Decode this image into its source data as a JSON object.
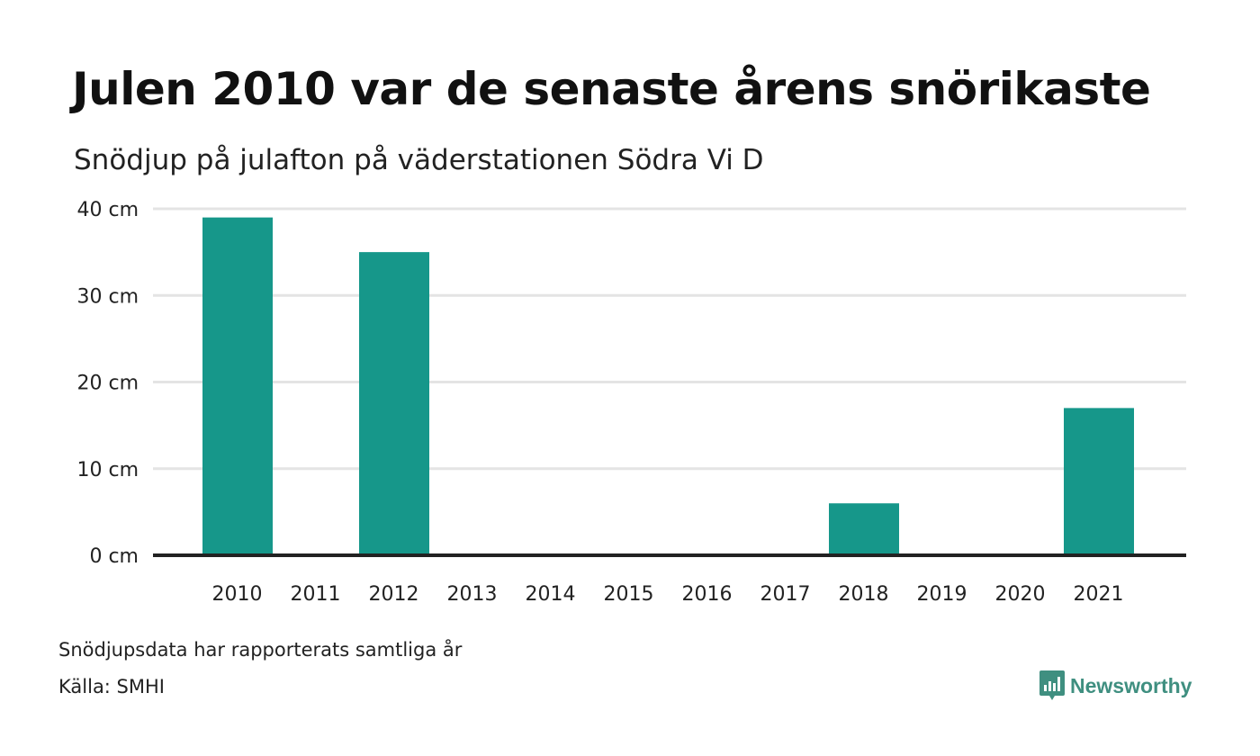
{
  "title": "Julen 2010 var de senaste årens snörikaste",
  "subtitle": "Snödjup på julafton på väderstationen Södra Vi D",
  "chart_data": {
    "type": "bar",
    "categories": [
      "2010",
      "2011",
      "2012",
      "2013",
      "2014",
      "2015",
      "2016",
      "2017",
      "2018",
      "2019",
      "2020",
      "2021"
    ],
    "values": [
      39,
      0,
      35,
      0,
      0,
      0,
      0,
      0,
      6,
      0,
      0,
      17
    ],
    "ylim": [
      0,
      40
    ],
    "yticks": [
      0,
      10,
      20,
      30,
      40
    ],
    "ytick_labels": [
      "0 cm",
      "10 cm",
      "20 cm",
      "30 cm",
      "40 cm"
    ],
    "grid": true,
    "bar_color": "#16978a",
    "grid_color": "#e4e4e4",
    "axis_color": "#222222"
  },
  "footer": {
    "note": "Snödjupsdata har rapporterats samtliga år",
    "source": "Källa: SMHI"
  },
  "brand": {
    "name": "Newsworthy",
    "icon": "newsworthy-logo-icon",
    "color": "#3f8f80"
  }
}
